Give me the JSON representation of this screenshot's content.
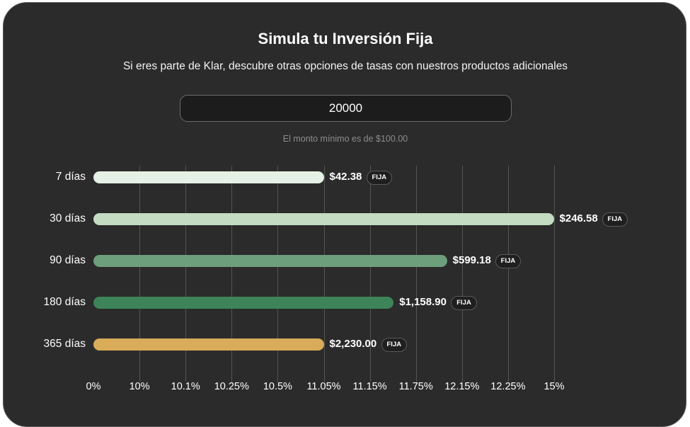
{
  "simulator": {
    "title": "Simula tu Inversión Fija",
    "subtitle": "Si eres parte de Klar, descubre otras opciones de tasas con nuestros productos adicionales",
    "amount_value": "20000",
    "min_hint": "El monto mínimo es de $100.00"
  },
  "chart_data": {
    "type": "bar",
    "orientation": "horizontal",
    "categories": [
      "7 días",
      "30 días",
      "90 días",
      "180 días",
      "365 días"
    ],
    "values": [
      42.38,
      246.58,
      599.18,
      1158.9,
      2230.0
    ],
    "value_labels": [
      "$42.38",
      "$246.58",
      "$599.18",
      "$1,158.90",
      "$2,230.00"
    ],
    "badges": [
      "FIJA",
      "FIJA",
      "FIJA",
      "FIJA",
      "FIJA"
    ],
    "rates": [
      11.05,
      14.98,
      12.02,
      11.46,
      11.05
    ],
    "bar_colors": [
      "#e5f1e4",
      "#c3dcc2",
      "#6d9f7c",
      "#3d8459",
      "#d9ac5a"
    ],
    "x_ticks": [
      "0%",
      "10%",
      "10.1%",
      "10.25%",
      "10.5%",
      "11.05%",
      "11.15%",
      "11.75%",
      "12.15%",
      "12.25%",
      "15%"
    ],
    "grid": true,
    "title": "",
    "xlabel": "",
    "ylabel": ""
  }
}
